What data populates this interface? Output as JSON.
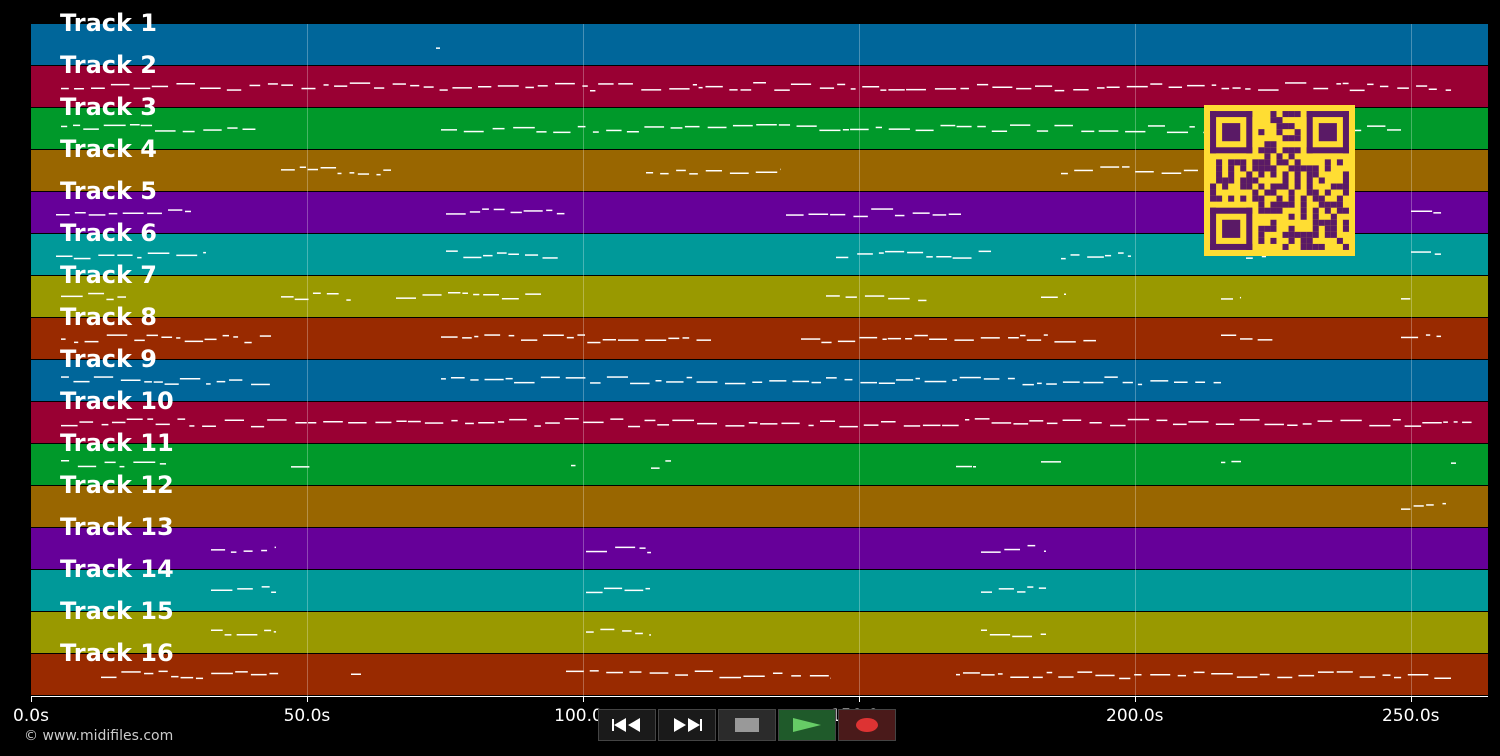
{
  "tracks": [
    {
      "label": "Track 1",
      "color": "#00669a"
    },
    {
      "label": "Track 2",
      "color": "#990033"
    },
    {
      "label": "Track 3",
      "color": "#00992a"
    },
    {
      "label": "Track 4",
      "color": "#996600"
    },
    {
      "label": "Track 5",
      "color": "#660099"
    },
    {
      "label": "Track 6",
      "color": "#009999"
    },
    {
      "label": "Track 7",
      "color": "#999900"
    },
    {
      "label": "Track 8",
      "color": "#992a00"
    },
    {
      "label": "Track 9",
      "color": "#00669a"
    },
    {
      "label": "Track 10",
      "color": "#990033"
    },
    {
      "label": "Track 11",
      "color": "#00992a"
    },
    {
      "label": "Track 12",
      "color": "#996600"
    },
    {
      "label": "Track 13",
      "color": "#660099"
    },
    {
      "label": "Track 14",
      "color": "#009999"
    },
    {
      "label": "Track 15",
      "color": "#999900"
    },
    {
      "label": "Track 16",
      "color": "#992a00"
    }
  ],
  "timeline": {
    "ticks": [
      "0.0s",
      "50.0s",
      "100.0s",
      "150.0s",
      "200.0s",
      "250.0s"
    ],
    "tick_seconds": [
      0,
      50,
      100,
      150,
      200,
      250
    ],
    "max_seconds": 264
  },
  "transport": {
    "rewind_icon": "rewind-icon",
    "fast_forward_icon": "fast-forward-icon",
    "stop_icon": "stop-icon",
    "play_icon": "play-icon",
    "record_icon": "record-icon"
  },
  "footer": {
    "copyright": "© www.midifiles.com"
  },
  "overlay": {
    "qr_icon": "qr-code-icon",
    "qr_color": "#ffdd33"
  }
}
